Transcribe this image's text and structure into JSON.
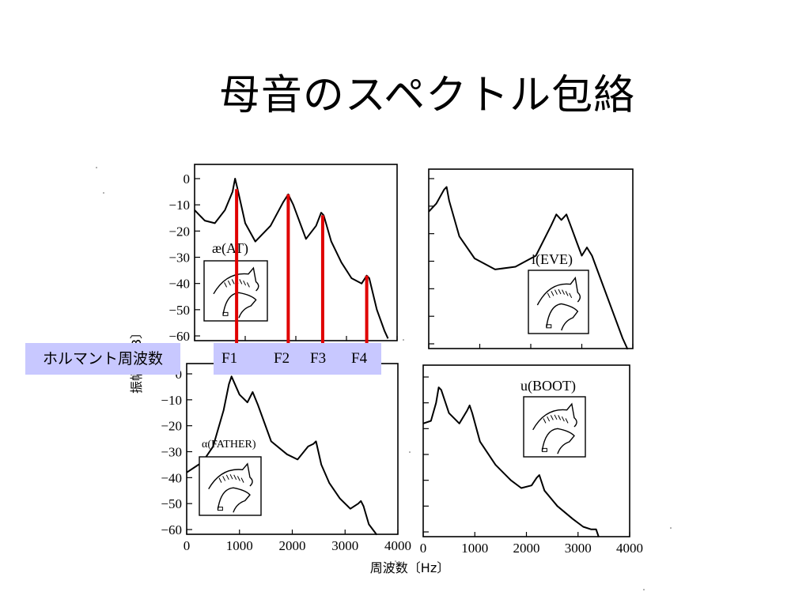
{
  "slide": {
    "title": "母音のスペクトル包絡"
  },
  "formant_label": "ホルマント周波数",
  "formants": [
    "F1",
    "F2",
    "F3",
    "F4"
  ],
  "axes": {
    "ylabel": "振幅〔dB〕",
    "xlabel": "周波数〔Hz〕",
    "y_ticks": [
      "0",
      "−10",
      "−20",
      "−30",
      "−40",
      "−50",
      "−60"
    ],
    "x_ticks": [
      "0",
      "1000",
      "2000",
      "3000",
      "4000"
    ]
  },
  "colors": {
    "marker": "#e00000",
    "formant_box": "#c8c8ff",
    "curve": "#000000"
  },
  "chart_data": [
    {
      "type": "line",
      "panel": "top-left",
      "vowel_label": "æ(AT)",
      "xlabel": "周波数〔Hz〕",
      "ylabel": "振幅〔dB〕",
      "xlim": [
        0,
        4000
      ],
      "ylim": [
        -60,
        0
      ],
      "x": [
        0,
        200,
        400,
        600,
        750,
        800,
        850,
        1000,
        1200,
        1500,
        1750,
        1850,
        1950,
        2200,
        2400,
        2500,
        2550,
        2700,
        2900,
        3100,
        3300,
        3400,
        3450,
        3600,
        3750,
        3820
      ],
      "y": [
        -12,
        -16,
        -17,
        -12,
        -5,
        0,
        -4,
        -17,
        -24,
        -18,
        -9,
        -6,
        -10,
        -23,
        -18,
        -13,
        -14,
        -24,
        -32,
        -38,
        -40,
        -37,
        -38,
        -50,
        -58,
        -61
      ],
      "formants_hz": [
        830,
        1850,
        2530,
        3400
      ]
    },
    {
      "type": "line",
      "panel": "top-right",
      "vowel_label": "i(EVE)",
      "xlabel": "周波数〔Hz〕",
      "ylabel": "振幅〔dB〕",
      "xlim": [
        0,
        4000
      ],
      "ylim": [
        -60,
        0
      ],
      "x": [
        0,
        150,
        300,
        350,
        400,
        600,
        900,
        1300,
        1700,
        2100,
        2400,
        2500,
        2600,
        2700,
        2800,
        2900,
        3000,
        3100,
        3200,
        3400,
        3600,
        3800,
        3900
      ],
      "y": [
        -12,
        -9,
        -4,
        -3,
        -8,
        -21,
        -29,
        -33,
        -32,
        -28,
        -17,
        -13,
        -15,
        -13,
        -18,
        -23,
        -28,
        -25,
        -28,
        -38,
        -48,
        -58,
        -62
      ],
      "formants_hz": [
        310,
        2550,
        2750,
        3100
      ]
    },
    {
      "type": "line",
      "panel": "bottom-left",
      "vowel_label": "α(FATHER)",
      "xlabel": "周波数〔Hz〕",
      "ylabel": "振幅〔dB〕",
      "xlim": [
        0,
        4000
      ],
      "ylim": [
        -60,
        0
      ],
      "x": [
        0,
        300,
        500,
        700,
        800,
        850,
        1000,
        1150,
        1250,
        1350,
        1600,
        1900,
        2100,
        2300,
        2400,
        2450,
        2550,
        2700,
        2900,
        3100,
        3250,
        3300,
        3350,
        3450,
        3600
      ],
      "y": [
        -38,
        -34,
        -28,
        -14,
        -4,
        -1,
        -8,
        -11,
        -7,
        -12,
        -26,
        -31,
        -33,
        -28,
        -27,
        -26,
        -35,
        -42,
        -48,
        -52,
        -50,
        -49,
        -51,
        -58,
        -62
      ],
      "formants_hz": [
        830,
        1250,
        2450,
        3300
      ]
    },
    {
      "type": "line",
      "panel": "top-right",
      "vowel_label": "u(BOOT)",
      "xlabel": "周波数〔Hz〕",
      "ylabel": "振幅〔dB〕",
      "xlim": [
        0,
        4000
      ],
      "ylim": [
        -60,
        0
      ],
      "x": [
        0,
        150,
        250,
        300,
        350,
        500,
        700,
        850,
        900,
        950,
        1100,
        1400,
        1700,
        1900,
        2100,
        2200,
        2250,
        2350,
        2600,
        2900,
        3100,
        3250,
        3350,
        3400
      ],
      "y": [
        -18,
        -17,
        -10,
        -4,
        -5,
        -14,
        -18,
        -13,
        -11,
        -14,
        -25,
        -34,
        -40,
        -43,
        -42,
        -39,
        -38,
        -44,
        -50,
        -55,
        -58,
        -59,
        -59,
        -62
      ],
      "formants_hz": [
        300,
        900,
        2250
      ]
    }
  ]
}
